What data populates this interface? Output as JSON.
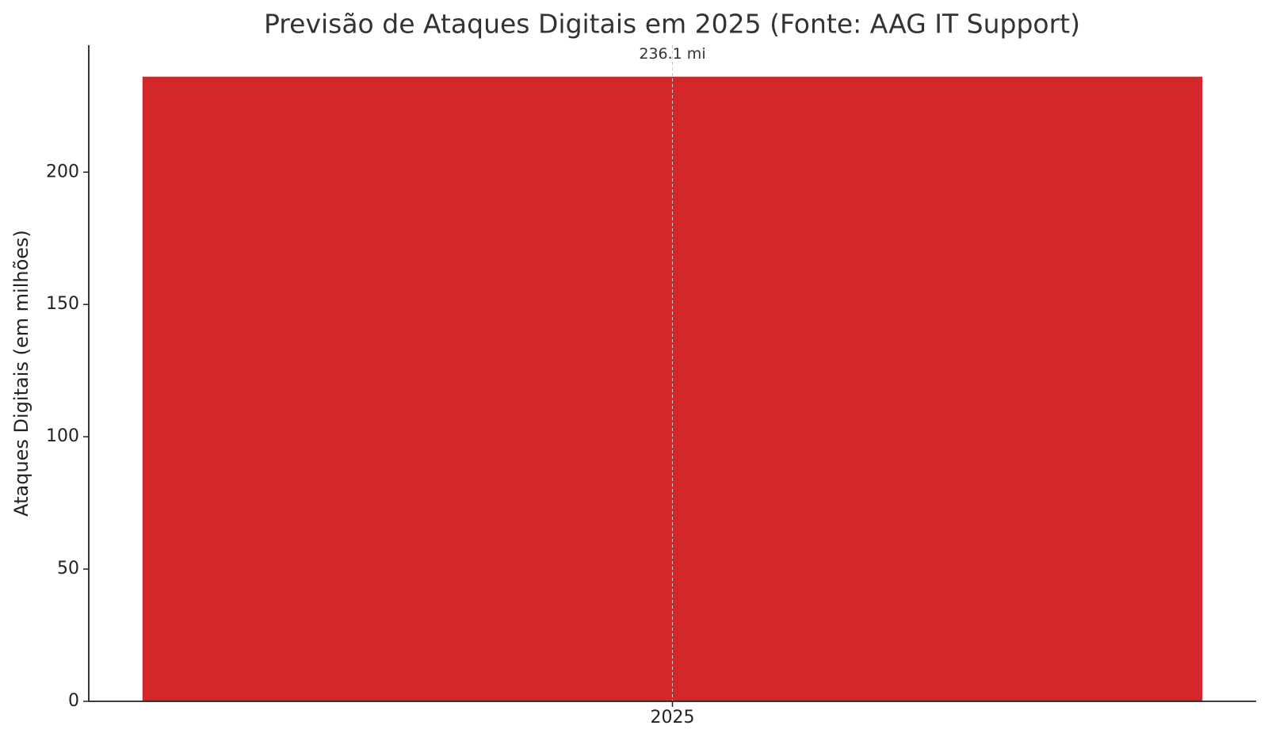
{
  "chart_data": {
    "type": "bar",
    "title": "Previsão de Ataques Digitais em 2025 (Fonte: AAG IT Support)",
    "y_label": "Ataques Digitais (em milhões)",
    "categories": [
      "2025"
    ],
    "values": [
      236.1
    ],
    "value_labels": [
      "236.1 mi"
    ],
    "color": "#d42729",
    "ylim": [
      0,
      248
    ],
    "yticks": [
      0,
      50,
      100,
      150,
      200
    ],
    "grid": "x"
  }
}
